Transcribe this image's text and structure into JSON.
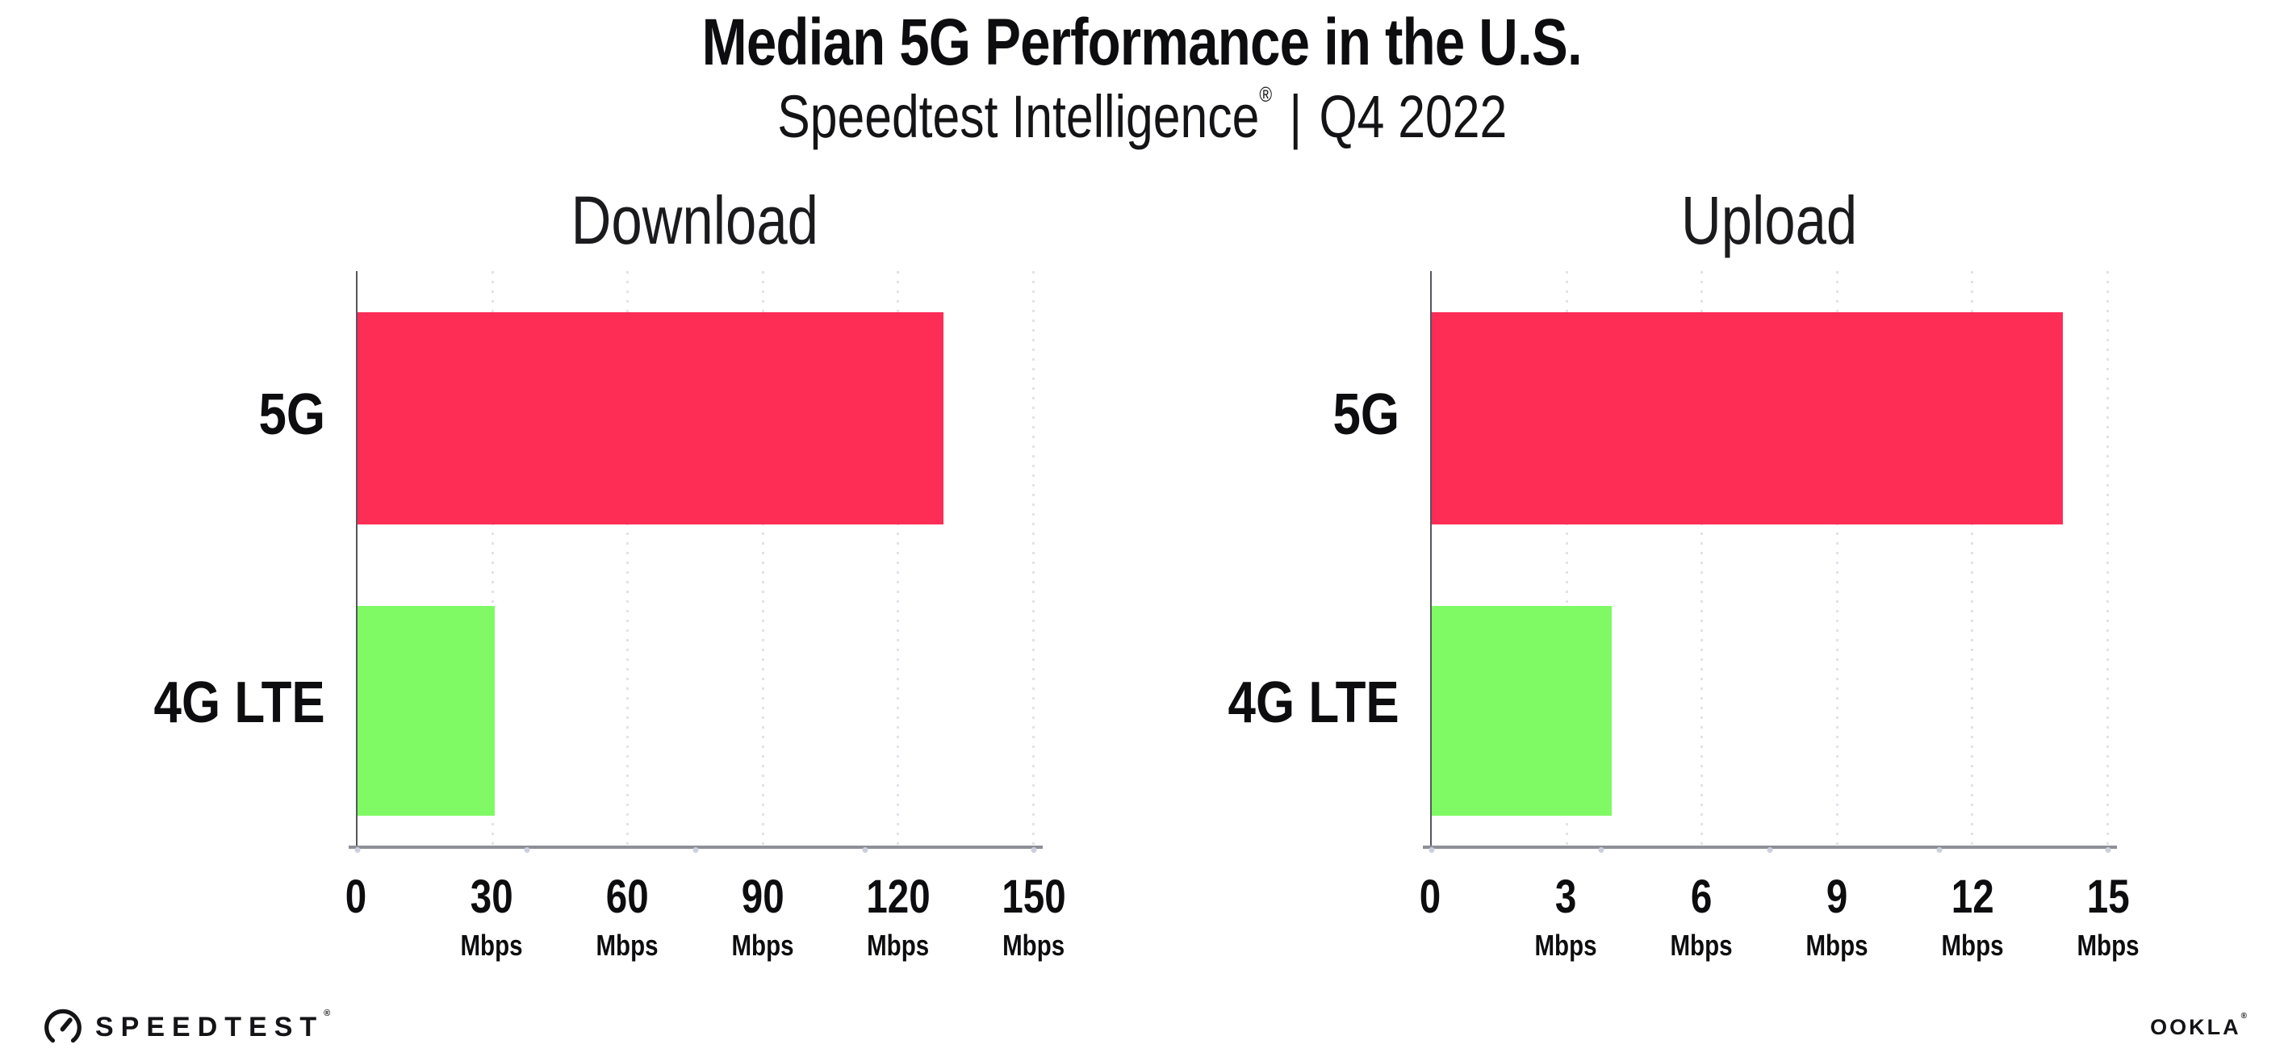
{
  "header": {
    "title": "Median 5G Performance in the U.S.",
    "subtitle": {
      "brand": "Speedtest Intelligence",
      "reg": "®",
      "separator": "|",
      "period": "Q4 2022"
    }
  },
  "chart_data": [
    {
      "type": "bar",
      "orientation": "horizontal",
      "title": "Download",
      "categories": [
        "5G",
        "4G LTE"
      ],
      "values": [
        130,
        30.5
      ],
      "unit": "Mbps",
      "xlabel": "",
      "ylabel": "",
      "xlim": [
        0,
        150
      ],
      "xticks": [
        0,
        30,
        60,
        90,
        120,
        150
      ],
      "grid": "vertical-dotted",
      "legend": "none",
      "bar_colors": [
        "#fd2d55",
        "#7ffa65"
      ]
    },
    {
      "type": "bar",
      "orientation": "horizontal",
      "title": "Upload",
      "categories": [
        "5G",
        "4G LTE"
      ],
      "values": [
        14,
        4
      ],
      "unit": "Mbps",
      "xlabel": "",
      "ylabel": "",
      "xlim": [
        0,
        15
      ],
      "xticks": [
        0,
        3,
        6,
        9,
        12,
        15
      ],
      "grid": "vertical-dotted",
      "legend": "none",
      "bar_colors": [
        "#fd2d55",
        "#7ffa65"
      ]
    }
  ],
  "colors": {
    "bar_5g": "#fd2d55",
    "bar_4g_lte": "#7ffa65",
    "gridline": "#e1e2eb",
    "x_axis_line": "#8f9097",
    "y_axis_line": "#55555e",
    "tick_dot": "#ccd0dd"
  },
  "footer": {
    "speedtest_label": "SPEEDTEST",
    "speedtest_reg": "®",
    "ookla_label": "OOKLA",
    "ookla_reg": "®"
  }
}
